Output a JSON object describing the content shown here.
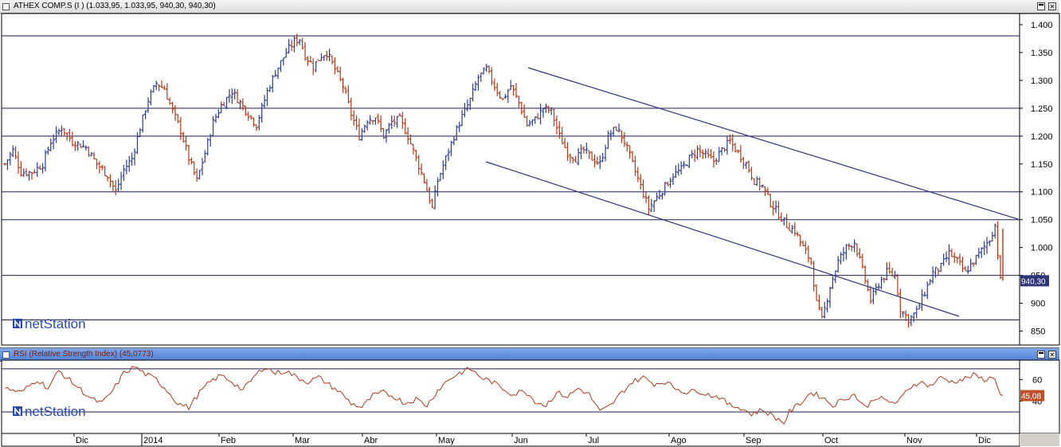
{
  "main_title": "ATHEX COMP.S (I ) (1.033,95, 1.033,95, 940,30, 940,30)",
  "rsi_title": "RSI (Relative Strength Index) (45,0773)",
  "logo_text": "netStation",
  "last_price_label": "940,30",
  "last_rsi_label": "45,08",
  "colors": {
    "up": "#2d3d8c",
    "down": "#b03a1a",
    "channel": "#2d3478",
    "rsi_line": "#b03a1a",
    "badge_price": "#2d3478",
    "badge_rsi": "#c0502a"
  },
  "chart_data": [
    {
      "type": "ohlc",
      "title": "ATHEX COMP.S (I ) (1.033,95, 1.033,95, 940,30, 940,30)",
      "x_labels": [
        "Dic",
        "2014",
        "Feb",
        "Mar",
        "Abr",
        "May",
        "Jun",
        "Jul",
        "Ago",
        "Sep",
        "Oct",
        "Nov",
        "Dic"
      ],
      "y_ticks": [
        "1.400",
        "1.350",
        "1.300",
        "1.250",
        "1.200",
        "1.150",
        "1.100",
        "1.050",
        "1.000",
        "950",
        "900",
        "850"
      ],
      "y_tick_values": [
        1400,
        1350,
        1300,
        1250,
        1200,
        1150,
        1100,
        1050,
        1000,
        950,
        900,
        850
      ],
      "ylim": [
        825,
        1420
      ],
      "horizontal_levels": [
        1380,
        1250,
        1200,
        1100,
        1050,
        950,
        870
      ],
      "close_anchor_points": [
        [
          0,
          1150
        ],
        [
          3,
          1175
        ],
        [
          6,
          1135
        ],
        [
          10,
          1135
        ],
        [
          14,
          1150
        ],
        [
          17,
          1190
        ],
        [
          21,
          1215
        ],
        [
          25,
          1190
        ],
        [
          30,
          1180
        ],
        [
          34,
          1150
        ],
        [
          38,
          1130
        ],
        [
          41,
          1100
        ],
        [
          44,
          1140
        ],
        [
          47,
          1160
        ],
        [
          50,
          1215
        ],
        [
          53,
          1265
        ],
        [
          56,
          1295
        ],
        [
          59,
          1285
        ],
        [
          62,
          1245
        ],
        [
          65,
          1210
        ],
        [
          68,
          1160
        ],
        [
          71,
          1120
        ],
        [
          74,
          1170
        ],
        [
          77,
          1225
        ],
        [
          80,
          1255
        ],
        [
          84,
          1280
        ],
        [
          87,
          1260
        ],
        [
          90,
          1240
        ],
        [
          93,
          1220
        ],
        [
          97,
          1280
        ],
        [
          100,
          1315
        ],
        [
          104,
          1350
        ],
        [
          107,
          1370
        ],
        [
          109,
          1375
        ],
        [
          111,
          1345
        ],
        [
          114,
          1325
        ],
        [
          117,
          1345
        ],
        [
          119,
          1350
        ],
        [
          122,
          1320
        ],
        [
          125,
          1290
        ],
        [
          128,
          1240
        ],
        [
          131,
          1200
        ],
        [
          134,
          1230
        ],
        [
          137,
          1235
        ],
        [
          140,
          1200
        ],
        [
          143,
          1225
        ],
        [
          146,
          1230
        ],
        [
          149,
          1200
        ],
        [
          152,
          1160
        ],
        [
          155,
          1120
        ],
        [
          158,
          1070
        ],
        [
          160,
          1120
        ],
        [
          163,
          1160
        ],
        [
          166,
          1200
        ],
        [
          169,
          1235
        ],
        [
          172,
          1265
        ],
        [
          175,
          1305
        ],
        [
          178,
          1320
        ],
        [
          181,
          1290
        ],
        [
          184,
          1265
        ],
        [
          187,
          1290
        ],
        [
          190,
          1260
        ],
        [
          193,
          1220
        ],
        [
          196,
          1230
        ],
        [
          199,
          1250
        ],
        [
          202,
          1245
        ],
        [
          205,
          1200
        ],
        [
          208,
          1170
        ],
        [
          211,
          1160
        ],
        [
          214,
          1175
        ],
        [
          217,
          1160
        ],
        [
          220,
          1150
        ],
        [
          223,
          1200
        ],
        [
          226,
          1215
        ],
        [
          229,
          1190
        ],
        [
          232,
          1150
        ],
        [
          235,
          1110
        ],
        [
          238,
          1070
        ],
        [
          241,
          1090
        ],
        [
          244,
          1110
        ],
        [
          247,
          1130
        ],
        [
          250,
          1140
        ],
        [
          253,
          1160
        ],
        [
          256,
          1175
        ],
        [
          259,
          1165
        ],
        [
          262,
          1155
        ],
        [
          265,
          1175
        ],
        [
          268,
          1190
        ],
        [
          271,
          1170
        ],
        [
          274,
          1150
        ],
        [
          277,
          1120
        ],
        [
          280,
          1110
        ],
        [
          283,
          1080
        ],
        [
          286,
          1060
        ],
        [
          289,
          1040
        ],
        [
          292,
          1030
        ],
        [
          295,
          1000
        ],
        [
          298,
          975
        ],
        [
          300,
          900
        ],
        [
          302,
          870
        ],
        [
          305,
          930
        ],
        [
          308,
          975
        ],
        [
          311,
          1000
        ],
        [
          314,
          1010
        ],
        [
          317,
          960
        ],
        [
          320,
          905
        ],
        [
          323,
          935
        ],
        [
          326,
          955
        ],
        [
          329,
          950
        ],
        [
          331,
          890
        ],
        [
          334,
          870
        ],
        [
          337,
          885
        ],
        [
          340,
          920
        ],
        [
          343,
          955
        ],
        [
          346,
          965
        ],
        [
          349,
          990
        ],
        [
          352,
          975
        ],
        [
          355,
          955
        ],
        [
          358,
          975
        ],
        [
          361,
          995
        ],
        [
          364,
          1015
        ],
        [
          366,
          1040
        ],
        [
          368,
          940
        ]
      ],
      "channel_lines": [
        {
          "from": [
            663,
            85
          ],
          "to": [
            1278,
            275
          ]
        },
        {
          "from": [
            610,
            203
          ],
          "to": [
            1204,
            397
          ]
        }
      ],
      "last_value": 940.3
    },
    {
      "type": "line",
      "title": "RSI (Relative Strength Index) (45,0773)",
      "series": [
        {
          "name": "RSI",
          "anchor_points": [
            [
              0,
              52
            ],
            [
              6,
              48
            ],
            [
              12,
              60
            ],
            [
              16,
              52
            ],
            [
              20,
              68
            ],
            [
              26,
              55
            ],
            [
              32,
              42
            ],
            [
              36,
              38
            ],
            [
              40,
              50
            ],
            [
              44,
              66
            ],
            [
              48,
              72
            ],
            [
              52,
              65
            ],
            [
              56,
              60
            ],
            [
              60,
              50
            ],
            [
              64,
              38
            ],
            [
              68,
              34
            ],
            [
              72,
              48
            ],
            [
              76,
              58
            ],
            [
              80,
              64
            ],
            [
              84,
              58
            ],
            [
              88,
              50
            ],
            [
              92,
              62
            ],
            [
              96,
              72
            ],
            [
              100,
              66
            ],
            [
              104,
              68
            ],
            [
              108,
              62
            ],
            [
              112,
              58
            ],
            [
              116,
              62
            ],
            [
              120,
              55
            ],
            [
              124,
              48
            ],
            [
              128,
              38
            ],
            [
              132,
              34
            ],
            [
              136,
              45
            ],
            [
              140,
              48
            ],
            [
              144,
              44
            ],
            [
              148,
              38
            ],
            [
              152,
              42
            ],
            [
              156,
              36
            ],
            [
              160,
              50
            ],
            [
              164,
              60
            ],
            [
              168,
              66
            ],
            [
              172,
              70
            ],
            [
              176,
              62
            ],
            [
              180,
              58
            ],
            [
              184,
              52
            ],
            [
              188,
              46
            ],
            [
              192,
              50
            ],
            [
              196,
              40
            ],
            [
              200,
              36
            ],
            [
              204,
              48
            ],
            [
              208,
              44
            ],
            [
              212,
              52
            ],
            [
              216,
              46
            ],
            [
              220,
              30
            ],
            [
              224,
              36
            ],
            [
              228,
              48
            ],
            [
              232,
              58
            ],
            [
              236,
              62
            ],
            [
              240,
              56
            ],
            [
              244,
              58
            ],
            [
              248,
              52
            ],
            [
              252,
              48
            ],
            [
              256,
              50
            ],
            [
              260,
              46
            ],
            [
              264,
              44
            ],
            [
              268,
              36
            ],
            [
              272,
              34
            ],
            [
              276,
              28
            ],
            [
              280,
              32
            ],
            [
              284,
              26
            ],
            [
              288,
              20
            ],
            [
              290,
              30
            ],
            [
              294,
              38
            ],
            [
              298,
              48
            ],
            [
              302,
              44
            ],
            [
              306,
              36
            ],
            [
              310,
              42
            ],
            [
              314,
              46
            ],
            [
              318,
              34
            ],
            [
              322,
              44
            ],
            [
              326,
              40
            ],
            [
              330,
              38
            ],
            [
              334,
              52
            ],
            [
              338,
              58
            ],
            [
              342,
              54
            ],
            [
              346,
              62
            ],
            [
              350,
              58
            ],
            [
              354,
              60
            ],
            [
              358,
              64
            ],
            [
              362,
              60
            ],
            [
              366,
              62
            ],
            [
              368,
              45
            ]
          ]
        }
      ],
      "y_ticks": [
        "60",
        "40"
      ],
      "y_tick_values": [
        60,
        40
      ],
      "ylim": [
        10,
        78
      ],
      "reference_levels": [
        70,
        30
      ],
      "last_value": 45.08
    }
  ]
}
